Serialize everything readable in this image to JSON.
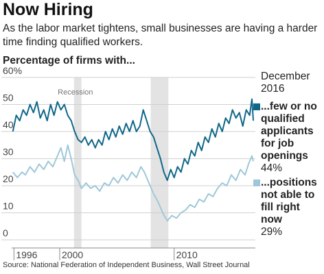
{
  "chart_data": {
    "type": "line",
    "title": "Now Hiring",
    "subtitle": "As the labor market tightens, small businesses are having a harder time finding qualified workers.",
    "y_label": "Percentage of firms with...",
    "end_heading": "December 2016",
    "source": "Source: National Federation of Independent Business, Wall Street Journal",
    "recession_label": "Recession",
    "recessions": [
      [
        2001.25,
        2001.9
      ],
      [
        2007.95,
        2009.5
      ]
    ],
    "xlim": [
      1995.8,
      2017.1
    ],
    "xticks": [
      1996,
      2000,
      2010
    ],
    "ylim": [
      -3,
      60
    ],
    "yticks": [
      0,
      10,
      20,
      30,
      40,
      50,
      {
        "value": 60,
        "label": "60%"
      }
    ],
    "grid": true,
    "series": [
      {
        "name": "...few or no qualified applicants for job openings",
        "color": "#0f6788",
        "end_label": "44%",
        "x": [
          1995.9,
          1996.2,
          1996.5,
          1996.8,
          1997.1,
          1997.4,
          1997.7,
          1998.0,
          1998.3,
          1998.6,
          1998.9,
          1999.2,
          1999.5,
          1999.8,
          2000.1,
          2000.4,
          2000.7,
          2001.0,
          2001.3,
          2001.6,
          2001.9,
          2002.2,
          2002.5,
          2002.8,
          2003.1,
          2003.4,
          2003.7,
          2004.0,
          2004.3,
          2004.6,
          2004.9,
          2005.2,
          2005.5,
          2005.8,
          2006.1,
          2006.4,
          2006.7,
          2007.0,
          2007.3,
          2007.6,
          2007.9,
          2008.2,
          2008.5,
          2008.8,
          2009.1,
          2009.4,
          2009.7,
          2010.0,
          2010.3,
          2010.6,
          2010.9,
          2011.2,
          2011.5,
          2011.8,
          2012.1,
          2012.4,
          2012.7,
          2013.0,
          2013.3,
          2013.6,
          2013.9,
          2014.2,
          2014.5,
          2014.8,
          2015.1,
          2015.4,
          2015.7,
          2016.0,
          2016.3,
          2016.6,
          2016.8,
          2016.92
        ],
        "values": [
          40,
          46,
          44,
          48,
          46,
          50,
          47,
          51,
          45,
          48,
          44,
          50,
          46,
          51,
          48,
          50,
          46,
          44,
          40,
          37,
          36,
          38,
          35,
          37,
          34,
          37,
          35,
          40,
          37,
          41,
          38,
          42,
          39,
          43,
          40,
          44,
          40,
          42,
          48,
          44,
          40,
          38,
          34,
          30,
          25,
          22,
          26,
          23,
          27,
          25,
          30,
          28,
          33,
          31,
          36,
          33,
          38,
          36,
          41,
          38,
          43,
          40,
          45,
          43,
          48,
          45,
          47,
          42,
          48,
          46,
          52,
          44
        ]
      },
      {
        "name": "...positions not able to fill right now",
        "color": "#9ec8d9",
        "end_label": "29%",
        "x": [
          1995.9,
          1996.3,
          1996.7,
          1997.0,
          1997.4,
          1997.8,
          1998.2,
          1998.6,
          1999.0,
          1999.4,
          1999.8,
          2000.1,
          2000.4,
          2000.7,
          2001.0,
          2001.3,
          2001.6,
          2001.9,
          2002.3,
          2002.7,
          2003.1,
          2003.5,
          2003.9,
          2004.3,
          2004.7,
          2005.1,
          2005.5,
          2005.9,
          2006.3,
          2006.7,
          2007.1,
          2007.4,
          2007.8,
          2008.2,
          2008.6,
          2009.0,
          2009.4,
          2009.8,
          2010.2,
          2010.6,
          2011.0,
          2011.4,
          2011.8,
          2012.2,
          2012.6,
          2013.0,
          2013.4,
          2013.8,
          2014.2,
          2014.6,
          2015.0,
          2015.4,
          2015.8,
          2016.2,
          2016.5,
          2016.8,
          2016.92
        ],
        "values": [
          25,
          23,
          25,
          24,
          27,
          25,
          28,
          26,
          29,
          27,
          31,
          34,
          29,
          35,
          30,
          24,
          22,
          19,
          21,
          19,
          20,
          18,
          21,
          20,
          23,
          21,
          24,
          22,
          25,
          23,
          27,
          25,
          21,
          17,
          14,
          10,
          7,
          9,
          8,
          10,
          11,
          13,
          12,
          15,
          14,
          17,
          16,
          19,
          21,
          20,
          24,
          22,
          26,
          24,
          28,
          31,
          29
        ]
      }
    ]
  }
}
